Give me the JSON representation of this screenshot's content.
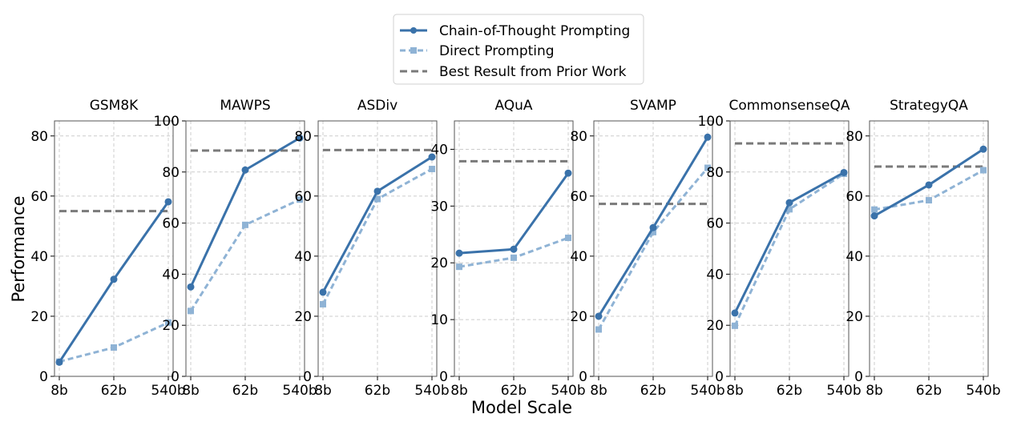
{
  "colors": {
    "cot": "#3a72aa",
    "direct": "#8fb3d5",
    "prior": "#7a7a7a",
    "grid": "#cccccc",
    "axis": "#555555"
  },
  "legend": {
    "entries": [
      "Chain-of-Thought Prompting",
      "Direct Prompting",
      "Best Result from Prior Work"
    ]
  },
  "axes": {
    "xlabel": "Model Scale",
    "ylabel": "Performance"
  },
  "chart_data": [
    {
      "type": "line",
      "title": "GSM8K",
      "categories": [
        "8b",
        "62b",
        "540b"
      ],
      "ylim": [
        0,
        85
      ],
      "yticks": [
        0,
        20,
        40,
        60,
        80
      ],
      "series": [
        {
          "name": "Chain-of-Thought Prompting",
          "values": [
            4.7,
            32.3,
            58.1
          ]
        },
        {
          "name": "Direct Prompting",
          "values": [
            4.9,
            9.6,
            17.9
          ]
        }
      ],
      "prior_best": 55
    },
    {
      "type": "line",
      "title": "MAWPS",
      "categories": [
        "8b",
        "62b",
        "540b"
      ],
      "ylim": [
        0,
        100
      ],
      "yticks": [
        0,
        20,
        40,
        60,
        80,
        100
      ],
      "series": [
        {
          "name": "Chain-of-Thought Prompting",
          "values": [
            35.0,
            80.8,
            93.3
          ]
        },
        {
          "name": "Direct Prompting",
          "values": [
            25.6,
            59.3,
            69.2
          ]
        }
      ],
      "prior_best": 88.4
    },
    {
      "type": "line",
      "title": "ASDiv",
      "categories": [
        "8b",
        "62b",
        "540b"
      ],
      "ylim": [
        0,
        85
      ],
      "yticks": [
        0,
        20,
        40,
        60,
        80
      ],
      "series": [
        {
          "name": "Chain-of-Thought Prompting",
          "values": [
            28.0,
            61.6,
            73.0
          ]
        },
        {
          "name": "Direct Prompting",
          "values": [
            24.0,
            59.0,
            69.0
          ]
        }
      ],
      "prior_best": 75.3
    },
    {
      "type": "line",
      "title": "AQuA",
      "categories": [
        "8b",
        "62b",
        "540b"
      ],
      "ylim": [
        0,
        45
      ],
      "yticks": [
        0,
        10,
        20,
        30,
        40
      ],
      "series": [
        {
          "name": "Chain-of-Thought Prompting",
          "values": [
            21.7,
            22.4,
            35.8
          ]
        },
        {
          "name": "Direct Prompting",
          "values": [
            19.3,
            20.9,
            24.4
          ]
        }
      ],
      "prior_best": 37.9
    },
    {
      "type": "line",
      "title": "SVAMP",
      "categories": [
        "8b",
        "62b",
        "540b"
      ],
      "ylim": [
        0,
        85
      ],
      "yticks": [
        0,
        20,
        40,
        60,
        80
      ],
      "series": [
        {
          "name": "Chain-of-Thought Prompting",
          "values": [
            20.0,
            49.5,
            79.6
          ]
        },
        {
          "name": "Direct Prompting",
          "values": [
            15.6,
            48.0,
            69.4
          ]
        }
      ],
      "prior_best": 57.4
    },
    {
      "type": "line",
      "title": "CommonsenseQA",
      "categories": [
        "8b",
        "62b",
        "540b"
      ],
      "ylim": [
        0,
        100
      ],
      "yticks": [
        0,
        20,
        40,
        60,
        80,
        100
      ],
      "series": [
        {
          "name": "Chain-of-Thought Prompting",
          "values": [
            24.8,
            68.0,
            79.8
          ]
        },
        {
          "name": "Direct Prompting",
          "values": [
            19.8,
            65.4,
            79.3
          ]
        }
      ],
      "prior_best": 91.2
    },
    {
      "type": "line",
      "title": "StrategyQA",
      "categories": [
        "8b",
        "62b",
        "540b"
      ],
      "ylim": [
        0,
        85
      ],
      "yticks": [
        0,
        20,
        40,
        60,
        80
      ],
      "series": [
        {
          "name": "Chain-of-Thought Prompting",
          "values": [
            53.4,
            63.7,
            75.6
          ]
        },
        {
          "name": "Direct Prompting",
          "values": [
            55.5,
            58.6,
            68.6
          ]
        }
      ],
      "prior_best": 69.8
    }
  ]
}
